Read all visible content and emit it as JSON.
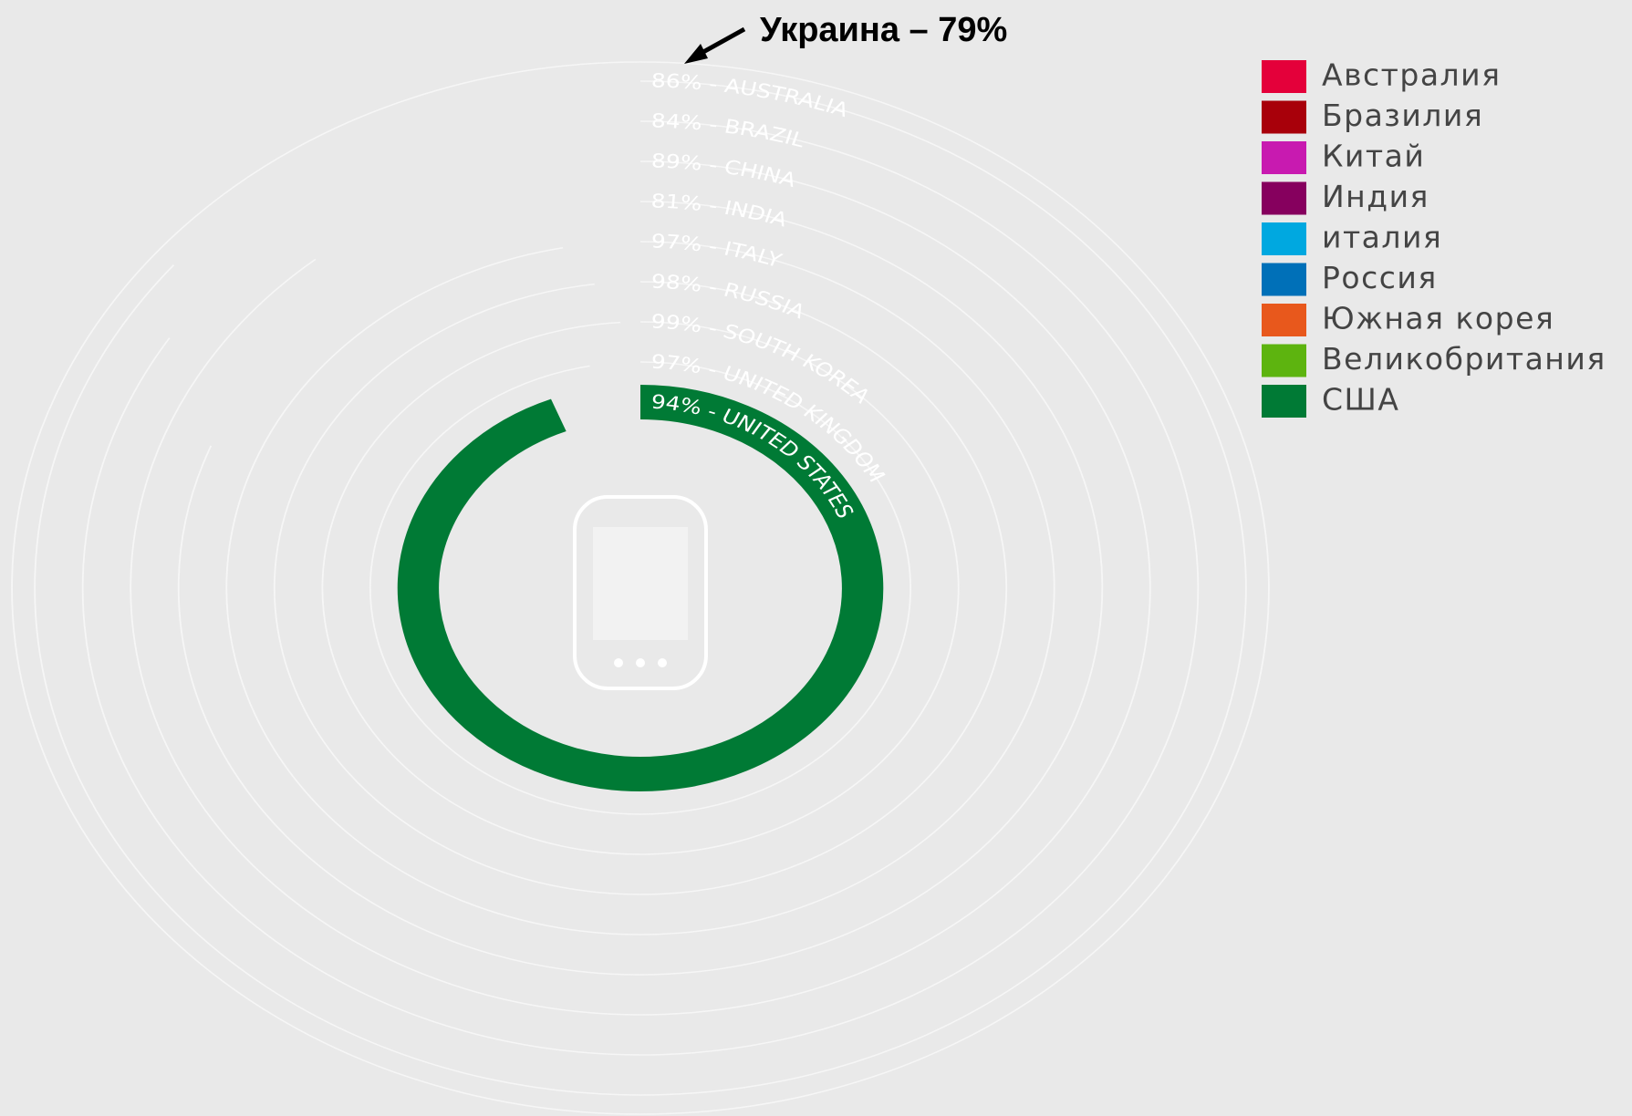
{
  "chart_data": {
    "type": "radial_bar",
    "annotation": "Украина – 79%",
    "categories": [
      "Австралия",
      "Бразилия",
      "Китай",
      "Индия",
      "италия",
      "Россия",
      "Южная корея",
      "Великобритания",
      "США"
    ],
    "values": [
      86,
      84,
      89,
      81,
      97,
      98,
      99,
      97,
      94
    ],
    "value_labels": [
      "86% - AUSTRALIA",
      "84% - BRAZIL",
      "89% - CHINA",
      "81% - INDIA",
      "97% - ITALY",
      "98% - RUSSIA",
      "99% - SOUTH KOREA",
      "97% - UNITED KINGDOM",
      "94% - UNITED STATES"
    ],
    "colors": [
      "#e4003a",
      "#a8000a",
      "#c81ab0",
      "#86005e",
      "#00a8e0",
      "#0070b8",
      "#e8581c",
      "#5db40f",
      "#007a35"
    ]
  }
}
